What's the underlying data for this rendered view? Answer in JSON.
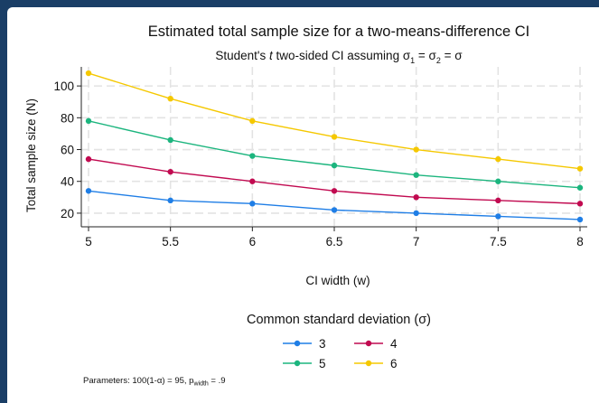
{
  "chart_data": {
    "type": "line",
    "title": "Estimated total sample size for a two-means-difference CI",
    "subtitle": {
      "prefix": "Student's ",
      "t_italic": "t",
      "mid": " two-sided CI assuming σ",
      "sub1": "1",
      "eq": " = σ",
      "sub2": "2",
      "suffix": " = σ"
    },
    "xlabel": "CI width (w)",
    "ylabel": "Total sample size (N)",
    "x": [
      5,
      5.5,
      6,
      6.5,
      7,
      7.5,
      8
    ],
    "x_ticks": [
      "5",
      "5.5",
      "6",
      "6.5",
      "7",
      "7.5",
      "8"
    ],
    "xlim": [
      5,
      8
    ],
    "y_ticks": [
      "20",
      "40",
      "60",
      "80",
      "100"
    ],
    "ylim": [
      12,
      112
    ],
    "grid": true,
    "series": [
      {
        "name": "3",
        "color": "#1f7ee6",
        "values": [
          34,
          28,
          26,
          22,
          20,
          18,
          16
        ]
      },
      {
        "name": "4",
        "color": "#c10a50",
        "values": [
          54,
          46,
          40,
          34,
          30,
          28,
          26
        ]
      },
      {
        "name": "5",
        "color": "#1cb57e",
        "values": [
          78,
          66,
          56,
          50,
          44,
          40,
          36
        ]
      },
      {
        "name": "6",
        "color": "#f5c800",
        "values": [
          108,
          92,
          78,
          68,
          60,
          54,
          48
        ]
      }
    ],
    "legend": {
      "title": "Common standard deviation (σ)",
      "placement": "bottom"
    },
    "note": {
      "prefix": "Parameters: 100(1-α) = 95, p",
      "sub": "width",
      "suffix": " = .9"
    }
  }
}
